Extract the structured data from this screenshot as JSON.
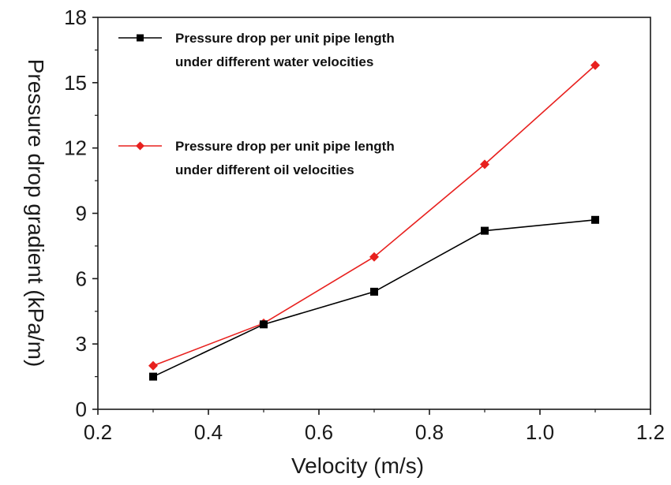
{
  "chart_data": {
    "type": "line",
    "title": "",
    "xlabel": "Velocity (m/s)",
    "ylabel": "Pressure drop gradient (kPa/m)",
    "xlim": [
      0.2,
      1.2
    ],
    "ylim": [
      0,
      18
    ],
    "xticks": [
      0.2,
      0.4,
      0.6,
      0.8,
      1.0,
      1.2
    ],
    "xtick_labels": [
      "0.2",
      "0.4",
      "0.6",
      "0.8",
      "1.0",
      "1.2"
    ],
    "yticks": [
      0,
      3,
      6,
      9,
      12,
      15,
      18
    ],
    "ytick_labels": [
      "0",
      "3",
      "6",
      "9",
      "12",
      "15",
      "18"
    ],
    "grid": false,
    "legend_position": "top-left",
    "series": [
      {
        "name": "Pressure drop per unit pipe length under different water velocities",
        "name_lines": [
          "Pressure drop per unit pipe length",
          "under different water velocities"
        ],
        "color": "#000000",
        "marker": "square",
        "x": [
          0.3,
          0.5,
          0.7,
          0.9,
          1.1
        ],
        "y": [
          1.5,
          3.9,
          5.4,
          8.2,
          8.7
        ]
      },
      {
        "name": "Pressure drop per unit pipe length under different oil velocities",
        "name_lines": [
          "Pressure drop per unit pipe length",
          "under different oil velocities"
        ],
        "color": "#e8201e",
        "marker": "diamond",
        "x": [
          0.3,
          0.5,
          0.7,
          0.9,
          1.1
        ],
        "y": [
          2.0,
          3.95,
          7.0,
          11.25,
          15.8
        ]
      }
    ]
  }
}
